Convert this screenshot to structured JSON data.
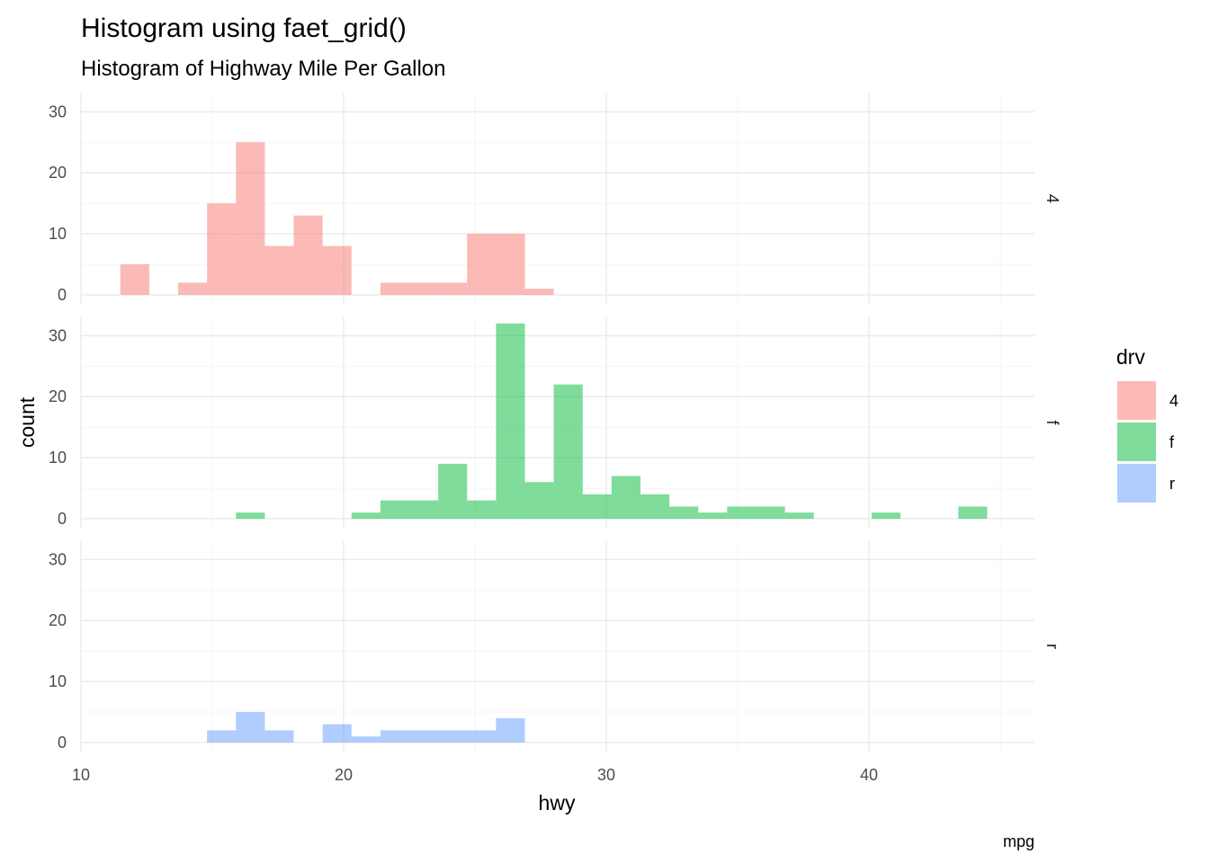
{
  "chart_data": {
    "type": "bar",
    "title": "Histogram using faet_grid()",
    "subtitle": "Histogram of Highway Mile Per Gallon",
    "xlabel": "hwy",
    "ylabel": "count",
    "caption": "mpg",
    "xlim": [
      10,
      46.3
    ],
    "ylim": [
      0,
      33
    ],
    "x_ticks": [
      10,
      20,
      30,
      40
    ],
    "y_ticks": [
      0,
      10,
      20,
      30
    ],
    "grid": true,
    "bin_width": 1.1,
    "legend": {
      "title": "drv",
      "position": "right",
      "entries": [
        {
          "label": "4",
          "color": "#f8766d"
        },
        {
          "label": "f",
          "color": "#00ba38"
        },
        {
          "label": "r",
          "color": "#619cff"
        }
      ]
    },
    "facets": [
      {
        "label": "4",
        "color": "#f8766d",
        "bins": [
          {
            "x0": 11.5,
            "x1": 12.6,
            "count": 5
          },
          {
            "x0": 13.7,
            "x1": 14.8,
            "count": 2
          },
          {
            "x0": 14.8,
            "x1": 15.9,
            "count": 15
          },
          {
            "x0": 15.9,
            "x1": 17.0,
            "count": 25
          },
          {
            "x0": 17.0,
            "x1": 18.1,
            "count": 8
          },
          {
            "x0": 18.1,
            "x1": 19.2,
            "count": 13
          },
          {
            "x0": 19.2,
            "x1": 20.3,
            "count": 8
          },
          {
            "x0": 21.4,
            "x1": 22.5,
            "count": 2
          },
          {
            "x0": 22.5,
            "x1": 23.6,
            "count": 2
          },
          {
            "x0": 23.6,
            "x1": 24.7,
            "count": 2
          },
          {
            "x0": 24.7,
            "x1": 25.8,
            "count": 10
          },
          {
            "x0": 25.8,
            "x1": 26.9,
            "count": 10
          },
          {
            "x0": 26.9,
            "x1": 28.0,
            "count": 1
          }
        ]
      },
      {
        "label": "f",
        "color": "#00ba38",
        "bins": [
          {
            "x0": 15.9,
            "x1": 17.0,
            "count": 1
          },
          {
            "x0": 20.3,
            "x1": 21.4,
            "count": 1
          },
          {
            "x0": 21.4,
            "x1": 22.5,
            "count": 3
          },
          {
            "x0": 22.5,
            "x1": 23.6,
            "count": 3
          },
          {
            "x0": 23.6,
            "x1": 24.7,
            "count": 9
          },
          {
            "x0": 24.7,
            "x1": 25.8,
            "count": 3
          },
          {
            "x0": 25.8,
            "x1": 26.9,
            "count": 32
          },
          {
            "x0": 26.9,
            "x1": 28.0,
            "count": 6
          },
          {
            "x0": 28.0,
            "x1": 29.1,
            "count": 22
          },
          {
            "x0": 29.1,
            "x1": 30.2,
            "count": 4
          },
          {
            "x0": 30.2,
            "x1": 31.3,
            "count": 7
          },
          {
            "x0": 31.3,
            "x1": 32.4,
            "count": 4
          },
          {
            "x0": 32.4,
            "x1": 33.5,
            "count": 2
          },
          {
            "x0": 33.5,
            "x1": 34.6,
            "count": 1
          },
          {
            "x0": 34.6,
            "x1": 35.7,
            "count": 2
          },
          {
            "x0": 35.7,
            "x1": 36.8,
            "count": 2
          },
          {
            "x0": 36.8,
            "x1": 37.9,
            "count": 1
          },
          {
            "x0": 40.1,
            "x1": 41.2,
            "count": 1
          },
          {
            "x0": 43.4,
            "x1": 44.5,
            "count": 2
          }
        ]
      },
      {
        "label": "r",
        "color": "#619cff",
        "bins": [
          {
            "x0": 14.8,
            "x1": 15.9,
            "count": 2
          },
          {
            "x0": 15.9,
            "x1": 17.0,
            "count": 5
          },
          {
            "x0": 17.0,
            "x1": 18.1,
            "count": 2
          },
          {
            "x0": 19.2,
            "x1": 20.3,
            "count": 3
          },
          {
            "x0": 20.3,
            "x1": 21.4,
            "count": 1
          },
          {
            "x0": 21.4,
            "x1": 22.5,
            "count": 2
          },
          {
            "x0": 22.5,
            "x1": 23.6,
            "count": 2
          },
          {
            "x0": 23.6,
            "x1": 24.7,
            "count": 2
          },
          {
            "x0": 24.7,
            "x1": 25.8,
            "count": 2
          },
          {
            "x0": 25.8,
            "x1": 26.9,
            "count": 4
          }
        ]
      }
    ]
  }
}
